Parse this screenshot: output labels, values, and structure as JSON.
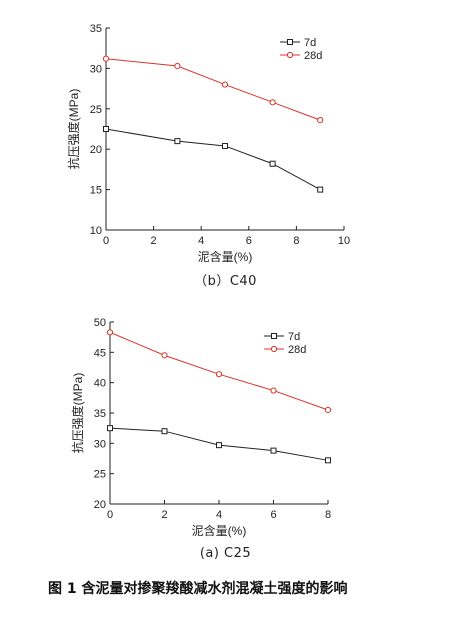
{
  "caption": "图 1  含泥量对掺聚羧酸减水剂混凝土强度的影响",
  "chart_data": [
    {
      "type": "line",
      "subtitle": "（b）C40",
      "xlabel": "泥含量(%)",
      "ylabel": "抗压强度(MPa)",
      "xlim": [
        0,
        10
      ],
      "ylim": [
        10,
        35
      ],
      "xticks": [
        0,
        2,
        4,
        6,
        8,
        10
      ],
      "yticks": [
        10,
        15,
        20,
        25,
        30,
        35
      ],
      "legend_position": "top-right",
      "x": [
        0,
        3,
        5,
        7,
        9
      ],
      "series": [
        {
          "name": "7d",
          "color": "#222222",
          "marker": "square",
          "values": [
            22.5,
            21.0,
            20.4,
            18.2,
            15.0
          ]
        },
        {
          "name": "28d",
          "color": "#d9342b",
          "marker": "circle",
          "values": [
            31.2,
            30.3,
            28.0,
            25.8,
            23.6
          ]
        }
      ]
    },
    {
      "type": "line",
      "subtitle": "(a) C25",
      "xlabel": "泥含量(%)",
      "ylabel": "抗压强度(MPa)",
      "xlim": [
        0,
        8
      ],
      "ylim": [
        20,
        50
      ],
      "xticks": [
        0,
        2,
        4,
        6,
        8
      ],
      "yticks": [
        20,
        25,
        30,
        35,
        40,
        45,
        50
      ],
      "legend_position": "top-right",
      "x": [
        0,
        2,
        4,
        6,
        8
      ],
      "series": [
        {
          "name": "7d",
          "color": "#222222",
          "marker": "square",
          "values": [
            32.5,
            32.0,
            29.7,
            28.8,
            27.2
          ]
        },
        {
          "name": "28d",
          "color": "#d9342b",
          "marker": "circle",
          "values": [
            48.3,
            44.5,
            41.4,
            38.7,
            35.5
          ]
        }
      ]
    }
  ]
}
